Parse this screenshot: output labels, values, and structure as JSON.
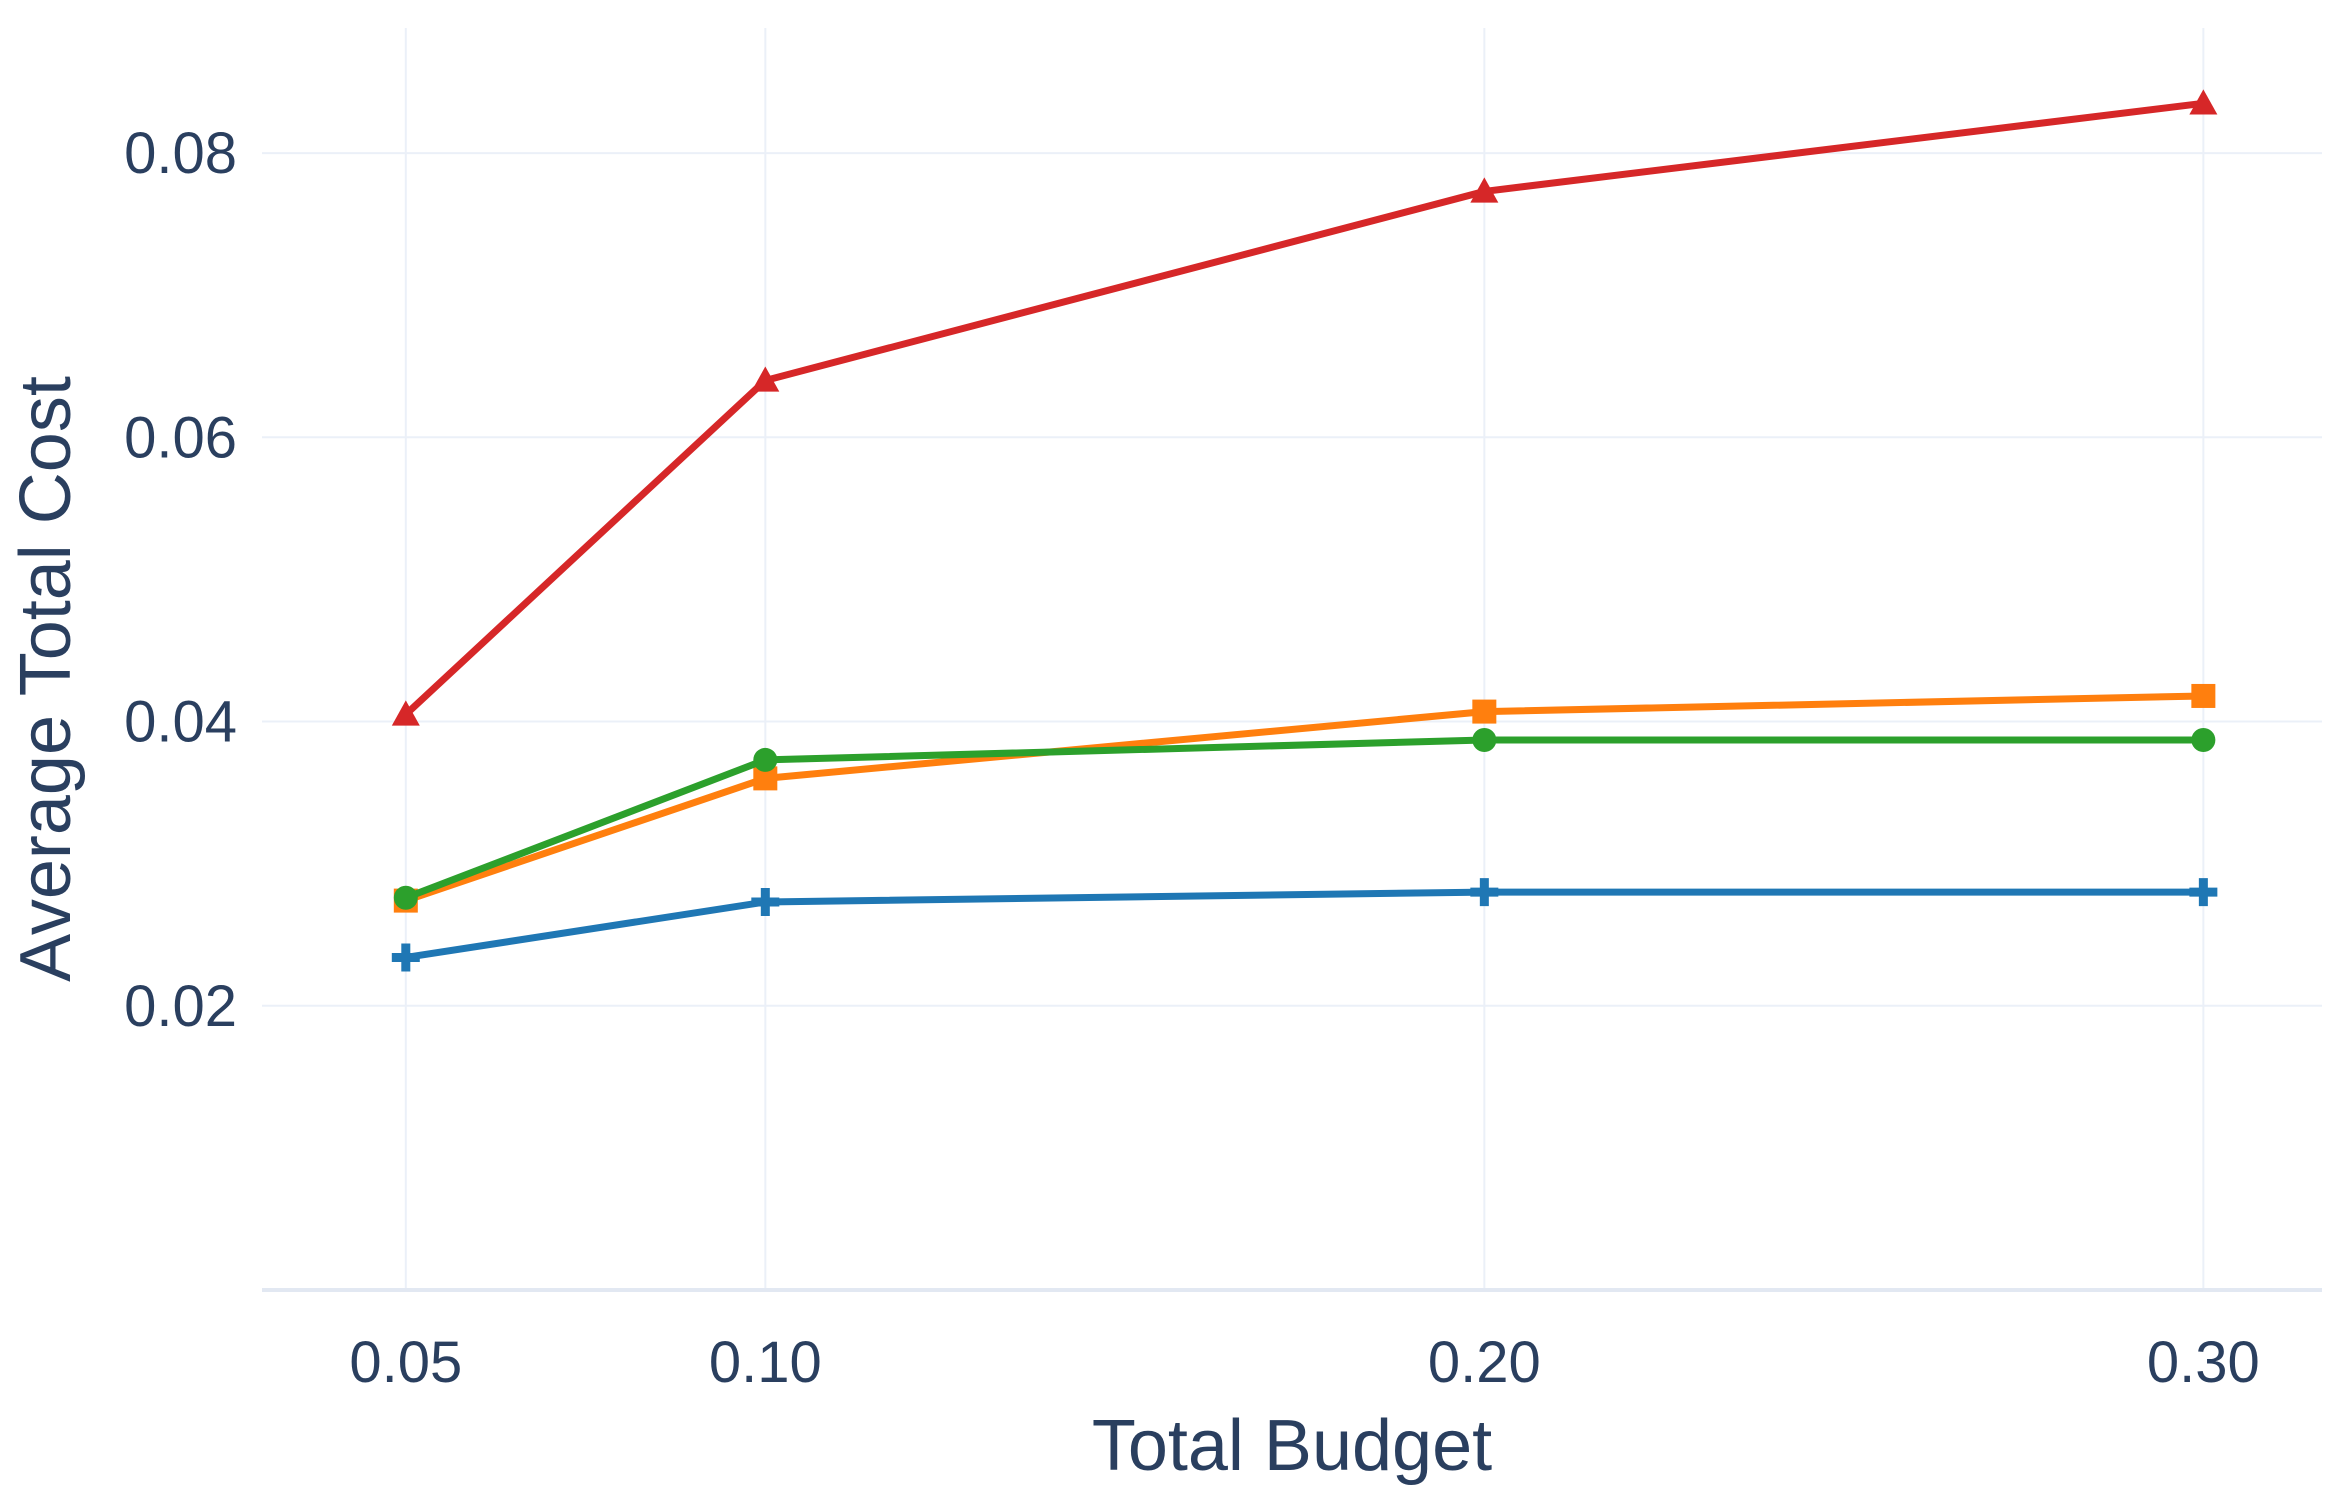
{
  "chart_data": {
    "type": "line",
    "title": "",
    "xlabel": "Total Budget",
    "ylabel": "Average Total Cost",
    "x": [
      0.05,
      0.1,
      0.2,
      0.3
    ],
    "x_tick_labels": [
      "0.05",
      "0.10",
      "0.20",
      "0.30"
    ],
    "y_ticks": [
      0.02,
      0.04,
      0.06,
      0.08
    ],
    "y_tick_labels": [
      "0.02",
      "0.04",
      "0.06",
      "0.08"
    ],
    "xlim": [
      0.03,
      0.3165
    ],
    "ylim": [
      0.0,
      0.0888
    ],
    "grid": true,
    "legend": "none",
    "series": [
      {
        "color": "#d62728",
        "marker": "triangle-up",
        "values": [
          0.0405,
          0.064,
          0.0773,
          0.0835
        ]
      },
      {
        "color": "#ff7f0e",
        "marker": "square",
        "values": [
          0.0274,
          0.036,
          0.0407,
          0.0418
        ]
      },
      {
        "color": "#2ca02c",
        "marker": "circle",
        "values": [
          0.0276,
          0.0373,
          0.0387,
          0.0387
        ]
      },
      {
        "color": "#1f77b4",
        "marker": "cross",
        "values": [
          0.0234,
          0.0273,
          0.028,
          0.028
        ]
      }
    ]
  }
}
